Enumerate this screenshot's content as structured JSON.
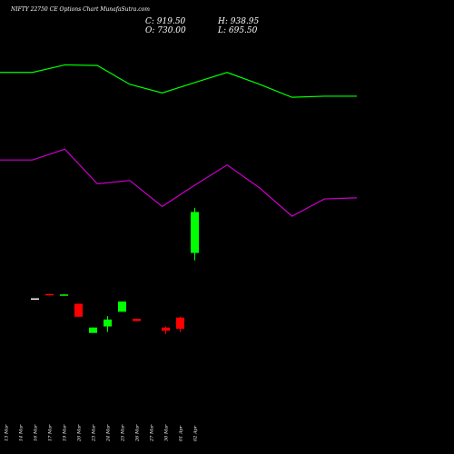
{
  "header": {
    "title": "NIFTY 22750  CE Options  Chart MunafaSutra.com",
    "close_label": "C: 919.50",
    "high_label": "H: 938.95",
    "open_label": "O: 730.00",
    "low_label": "L: 695.50"
  },
  "chart_data": {
    "type": "candlestick",
    "title": "NIFTY 22750  CE Options  Chart MunafaSutra.com",
    "categories": [
      "13 Mar",
      "14 Mar",
      "16 Mar",
      "17 Mar",
      "19 Mar",
      "20 Mar",
      "23 Mar",
      "24 Mar",
      "25 Mar",
      "26 Mar",
      "27 Mar",
      "30 Mar",
      "01 Apr",
      "02 Apr"
    ],
    "candles": [
      {
        "label": "13 Mar",
        "open": null,
        "high": null,
        "low": null,
        "close": null,
        "color": null
      },
      {
        "label": "14 Mar",
        "open": null,
        "high": null,
        "low": null,
        "close": null,
        "color": null
      },
      {
        "label": "16 Mar",
        "open": 520,
        "high": 520,
        "low": 520,
        "close": 520,
        "color": "#ffffff"
      },
      {
        "label": "17 Mar",
        "open": 540,
        "high": 541,
        "low": 539,
        "close": 540,
        "color": "#ff0000"
      },
      {
        "label": "19 Mar",
        "open": 538,
        "high": 539,
        "low": 537,
        "close": 538,
        "color": "#00ff00"
      },
      {
        "label": "20 Mar",
        "open": 495,
        "high": 495,
        "low": 435,
        "close": 435,
        "color": "#ff0000"
      },
      {
        "label": "23 Mar",
        "open": 360,
        "high": 385,
        "low": 360,
        "close": 385,
        "color": "#00ff00"
      },
      {
        "label": "24 Mar",
        "open": 390,
        "high": 438,
        "low": 365,
        "close": 422,
        "color": "#00ff00"
      },
      {
        "label": "25 Mar",
        "open": 458,
        "high": 505,
        "low": 458,
        "close": 505,
        "color": "#00ff00"
      },
      {
        "label": "26 Mar",
        "open": 425,
        "high": 425,
        "low": 415,
        "close": 415,
        "color": "#ff0000"
      },
      {
        "label": "27 Mar",
        "open": null,
        "high": null,
        "low": null,
        "close": null,
        "color": null
      },
      {
        "label": "30 Mar",
        "open": 385,
        "high": 390,
        "low": 355,
        "close": 370,
        "color": "#ff0000"
      },
      {
        "label": "01 Apr",
        "open": 431,
        "high": 436,
        "low": 364,
        "close": 379,
        "color": "#ff0000"
      },
      {
        "label": "02 Apr",
        "open": 730,
        "high": 938.95,
        "low": 695.5,
        "close": 919.5,
        "color": "#00ff00"
      }
    ],
    "overlay_lines": [
      {
        "color": "#00ff00",
        "values": [
          1565,
          1565,
          1600,
          1597,
          1510,
          1470,
          1518,
          1565,
          1510,
          1450,
          1455,
          1455,
          null,
          null
        ]
      },
      {
        "color": "#cc00cc",
        "values": [
          1160,
          1160,
          1210,
          1050,
          1065,
          945,
          1043,
          1137,
          1031,
          900,
          980,
          985,
          null,
          null
        ]
      }
    ],
    "ylim": [
      -200,
      1900
    ],
    "grid": false,
    "legend": false
  }
}
